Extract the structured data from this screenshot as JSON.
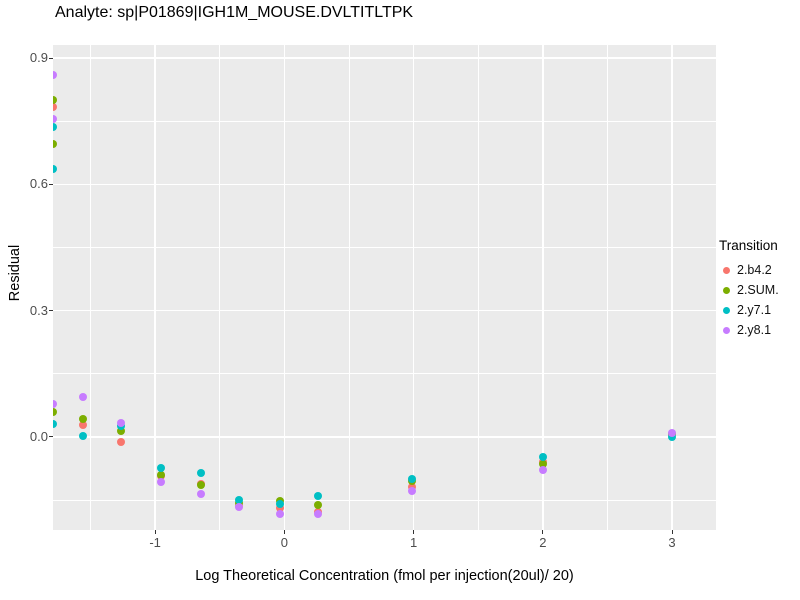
{
  "chart_data": {
    "type": "scatter",
    "title": "Analyte: sp|P01869|IGH1M_MOUSE.DVLTITLTPK",
    "xlabel": "Log Theoretical Concentration (fmol per injection(20ul)/ 20)",
    "ylabel": "Residual",
    "legend_title": "Transition",
    "legend_position": "right",
    "grid": true,
    "panel_background": "#EBEBEB",
    "gridline_color": "#FFFFFF",
    "tick_label_color": "#4D4D4D",
    "xlim": [
      -1.79,
      3.34
    ],
    "ylim": [
      -0.221,
      0.931
    ],
    "x_ticks": [
      -1,
      0,
      1,
      2,
      3
    ],
    "x_tick_labels": [
      "-1",
      "0",
      "1",
      "2",
      "3"
    ],
    "x_minor": [
      -1.5,
      -0.5,
      0.5,
      1.5,
      2.5
    ],
    "y_ticks": [
      0,
      0.3,
      0.6,
      0.9
    ],
    "y_tick_labels": [
      "0.0",
      "0.3",
      "0.6",
      "0.9"
    ],
    "y_minor": [
      -0.15,
      0.15,
      0.45,
      0.75
    ],
    "series": [
      {
        "name": "2.b4.2",
        "color": "#F8766D",
        "points": [
          [
            -1.79,
            0.784
          ],
          [
            -1.558,
            0.029
          ],
          [
            -1.264,
            -0.012
          ],
          [
            -0.953,
            -0.093
          ],
          [
            -0.643,
            -0.112
          ],
          [
            -0.349,
            -0.164
          ],
          [
            -0.031,
            -0.169
          ],
          [
            0.264,
            -0.178
          ],
          [
            0.985,
            -0.119
          ],
          [
            2.0,
            -0.059
          ],
          [
            3.0,
            0.008
          ]
        ]
      },
      {
        "name": "2.SUM.",
        "color": "#7CAE00",
        "points": [
          [
            -1.79,
            0.8
          ],
          [
            -1.79,
            0.696
          ],
          [
            -1.79,
            0.059
          ],
          [
            -1.558,
            0.043
          ],
          [
            -1.264,
            0.014
          ],
          [
            -0.953,
            -0.09
          ],
          [
            -0.643,
            -0.114
          ],
          [
            -0.349,
            -0.157
          ],
          [
            -0.031,
            -0.152
          ],
          [
            0.264,
            -0.162
          ],
          [
            0.985,
            -0.105
          ],
          [
            2.0,
            -0.064
          ],
          [
            3.0,
            0.008
          ]
        ]
      },
      {
        "name": "2.y7.1",
        "color": "#00BFC4",
        "points": [
          [
            -1.79,
            0.736
          ],
          [
            -1.79,
            0.637
          ],
          [
            -1.79,
            0.031
          ],
          [
            -1.558,
            0.002
          ],
          [
            -1.264,
            0.026
          ],
          [
            -0.953,
            -0.074
          ],
          [
            -0.643,
            -0.086
          ],
          [
            -0.349,
            -0.15
          ],
          [
            -0.031,
            -0.159
          ],
          [
            0.264,
            -0.14
          ],
          [
            0.985,
            -0.1
          ],
          [
            2.0,
            -0.048
          ],
          [
            3.0,
            0.0
          ]
        ]
      },
      {
        "name": "2.y8.1",
        "color": "#C77CFF",
        "points": [
          [
            -1.79,
            0.86
          ],
          [
            -1.79,
            0.755
          ],
          [
            -1.79,
            0.078
          ],
          [
            -1.558,
            0.095
          ],
          [
            -1.264,
            0.033
          ],
          [
            -0.953,
            -0.107
          ],
          [
            -0.643,
            -0.135
          ],
          [
            -0.349,
            -0.166
          ],
          [
            -0.031,
            -0.183
          ],
          [
            0.264,
            -0.183
          ],
          [
            0.985,
            -0.128
          ],
          [
            2.0,
            -0.078
          ],
          [
            3.0,
            0.01
          ]
        ]
      }
    ]
  }
}
